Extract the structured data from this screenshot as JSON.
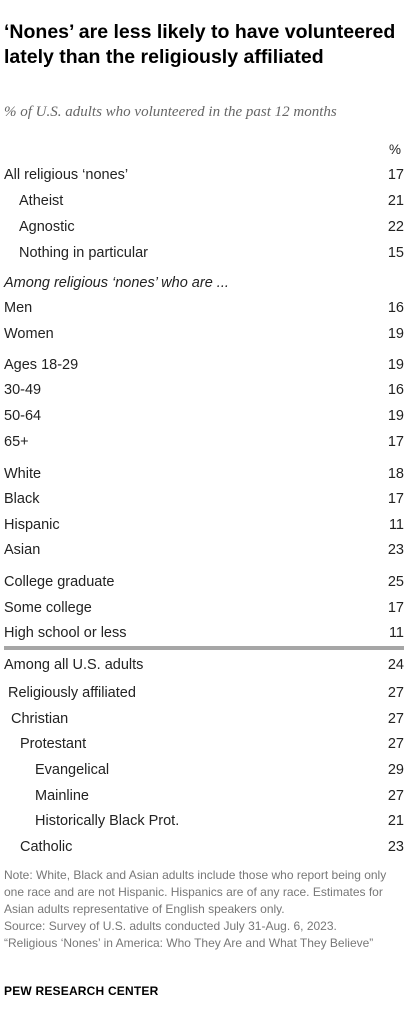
{
  "title": "‘Nones’ are less likely to have volunteered lately than the religiously affiliated",
  "subtitle": "% of U.S. adults who volunteered in the past 12 months",
  "chart_data": {
    "type": "table",
    "value_header": "%",
    "sections": [
      {
        "heading": "",
        "rows": [
          {
            "label": "All religious ‘nones’",
            "value": 17,
            "indent": 0
          },
          {
            "label": "Atheist",
            "value": 21,
            "indent": 1
          },
          {
            "label": "Agnostic",
            "value": 22,
            "indent": 1
          },
          {
            "label": "Nothing in particular",
            "value": 15,
            "indent": 1
          }
        ]
      },
      {
        "heading": "Among religious ‘nones’ who are ...",
        "rows": [
          {
            "label": "Men",
            "value": 16,
            "indent": 0
          },
          {
            "label": "Women",
            "value": 19,
            "indent": 0
          },
          {
            "label": "Ages 18-29",
            "value": 19,
            "indent": 0
          },
          {
            "label": "30-49",
            "value": 16,
            "indent": 0
          },
          {
            "label": "50-64",
            "value": 19,
            "indent": 0
          },
          {
            "label": "65+",
            "value": 17,
            "indent": 0
          },
          {
            "label": "White",
            "value": 18,
            "indent": 0
          },
          {
            "label": "Black",
            "value": 17,
            "indent": 0
          },
          {
            "label": "Hispanic",
            "value": 11,
            "indent": 0
          },
          {
            "label": "Asian",
            "value": 23,
            "indent": 0
          },
          {
            "label": "College graduate",
            "value": 25,
            "indent": 0
          },
          {
            "label": "Some college",
            "value": 17,
            "indent": 0
          },
          {
            "label": "High school or less",
            "value": 11,
            "indent": 0
          }
        ]
      },
      {
        "heading": "",
        "rows": [
          {
            "label": "Among all U.S. adults",
            "value": 24,
            "indent": 0
          },
          {
            "label": "Religiously affiliated",
            "value": 27,
            "indent": 1
          },
          {
            "label": "Christian",
            "value": 27,
            "indent": 2
          },
          {
            "label": "Protestant",
            "value": 27,
            "indent": 3
          },
          {
            "label": "Evangelical",
            "value": 29,
            "indent": 4
          },
          {
            "label": "Mainline",
            "value": 27,
            "indent": 4
          },
          {
            "label": "Historically Black Prot.",
            "value": 21,
            "indent": 4
          },
          {
            "label": "Catholic",
            "value": 23,
            "indent": 3
          }
        ]
      }
    ]
  },
  "note": {
    "lines": [
      "Note: White, Black and Asian adults include those who report being only one race and are not Hispanic. Hispanics are of any race. Estimates for Asian adults representative of English speakers only.",
      "Source: Survey of U.S. adults conducted July 31-Aug. 6, 2023.",
      "“Religious ‘Nones’ in America: Who They Are and What They Believe”"
    ]
  },
  "brand": "PEW RESEARCH CENTER",
  "colors": {
    "divider": "#a6a6a6",
    "note_text": "#777777",
    "subtitle_text": "#666666"
  }
}
